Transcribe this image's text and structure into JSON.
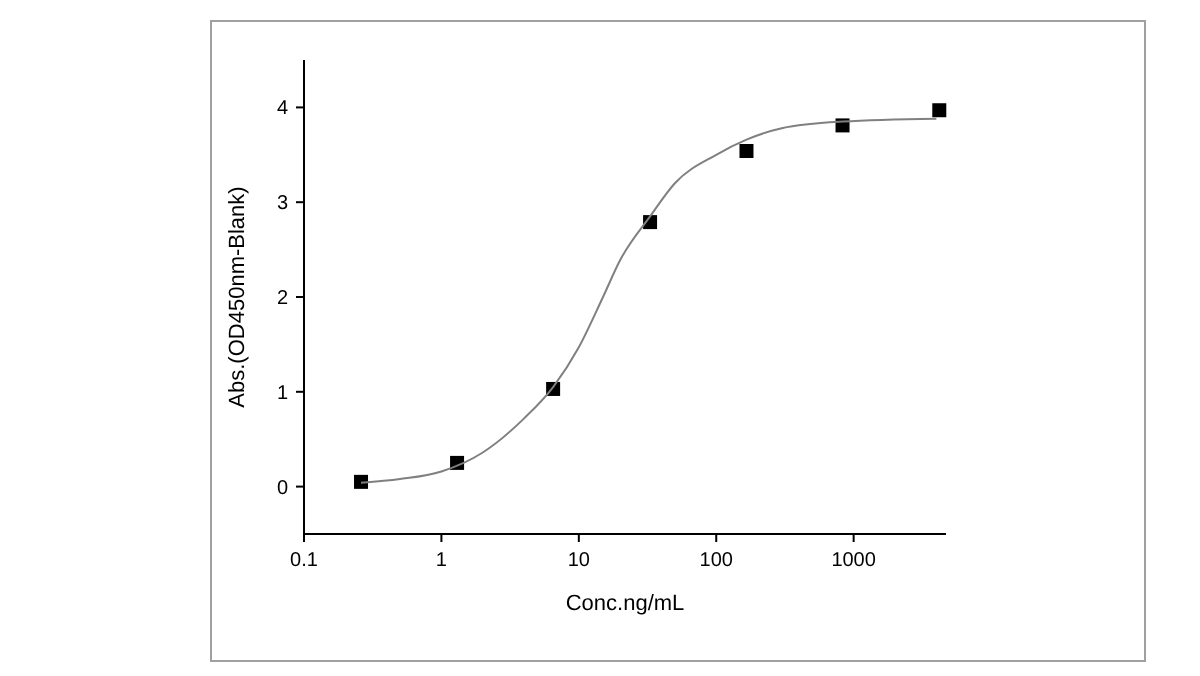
{
  "chart_data": {
    "type": "scatter",
    "xlabel": "Conc.ng/mL",
    "ylabel": "Abs.(OD450nm-Blank)",
    "log": "x",
    "xlim": [
      0.1,
      4700
    ],
    "xticks": [
      0.1,
      1,
      10,
      100,
      1000
    ],
    "ylim": [
      -0.5,
      4.5
    ],
    "yticks": [
      0,
      1,
      2,
      3,
      4
    ],
    "grid": false,
    "series": [
      {
        "color": "#000000",
        "marker": "square",
        "x": [
          0.26,
          1.3,
          6.5,
          33,
          166,
          830,
          4200
        ],
        "values": [
          0.05,
          0.25,
          1.03,
          2.79,
          3.54,
          3.81,
          3.97
        ]
      },
      {
        "type": "line",
        "color": "#808080",
        "line_style": "solid",
        "marker": "none",
        "x": [
          0.26,
          0.5,
          1,
          2,
          4,
          6.5,
          10,
          15,
          20,
          33,
          50,
          100,
          166,
          300,
          830,
          4000
        ],
        "values": [
          0.04,
          0.08,
          0.16,
          0.36,
          0.72,
          1.05,
          1.47,
          2.0,
          2.39,
          2.85,
          3.2,
          3.5,
          3.66,
          3.78,
          3.85,
          3.88
        ]
      }
    ]
  }
}
